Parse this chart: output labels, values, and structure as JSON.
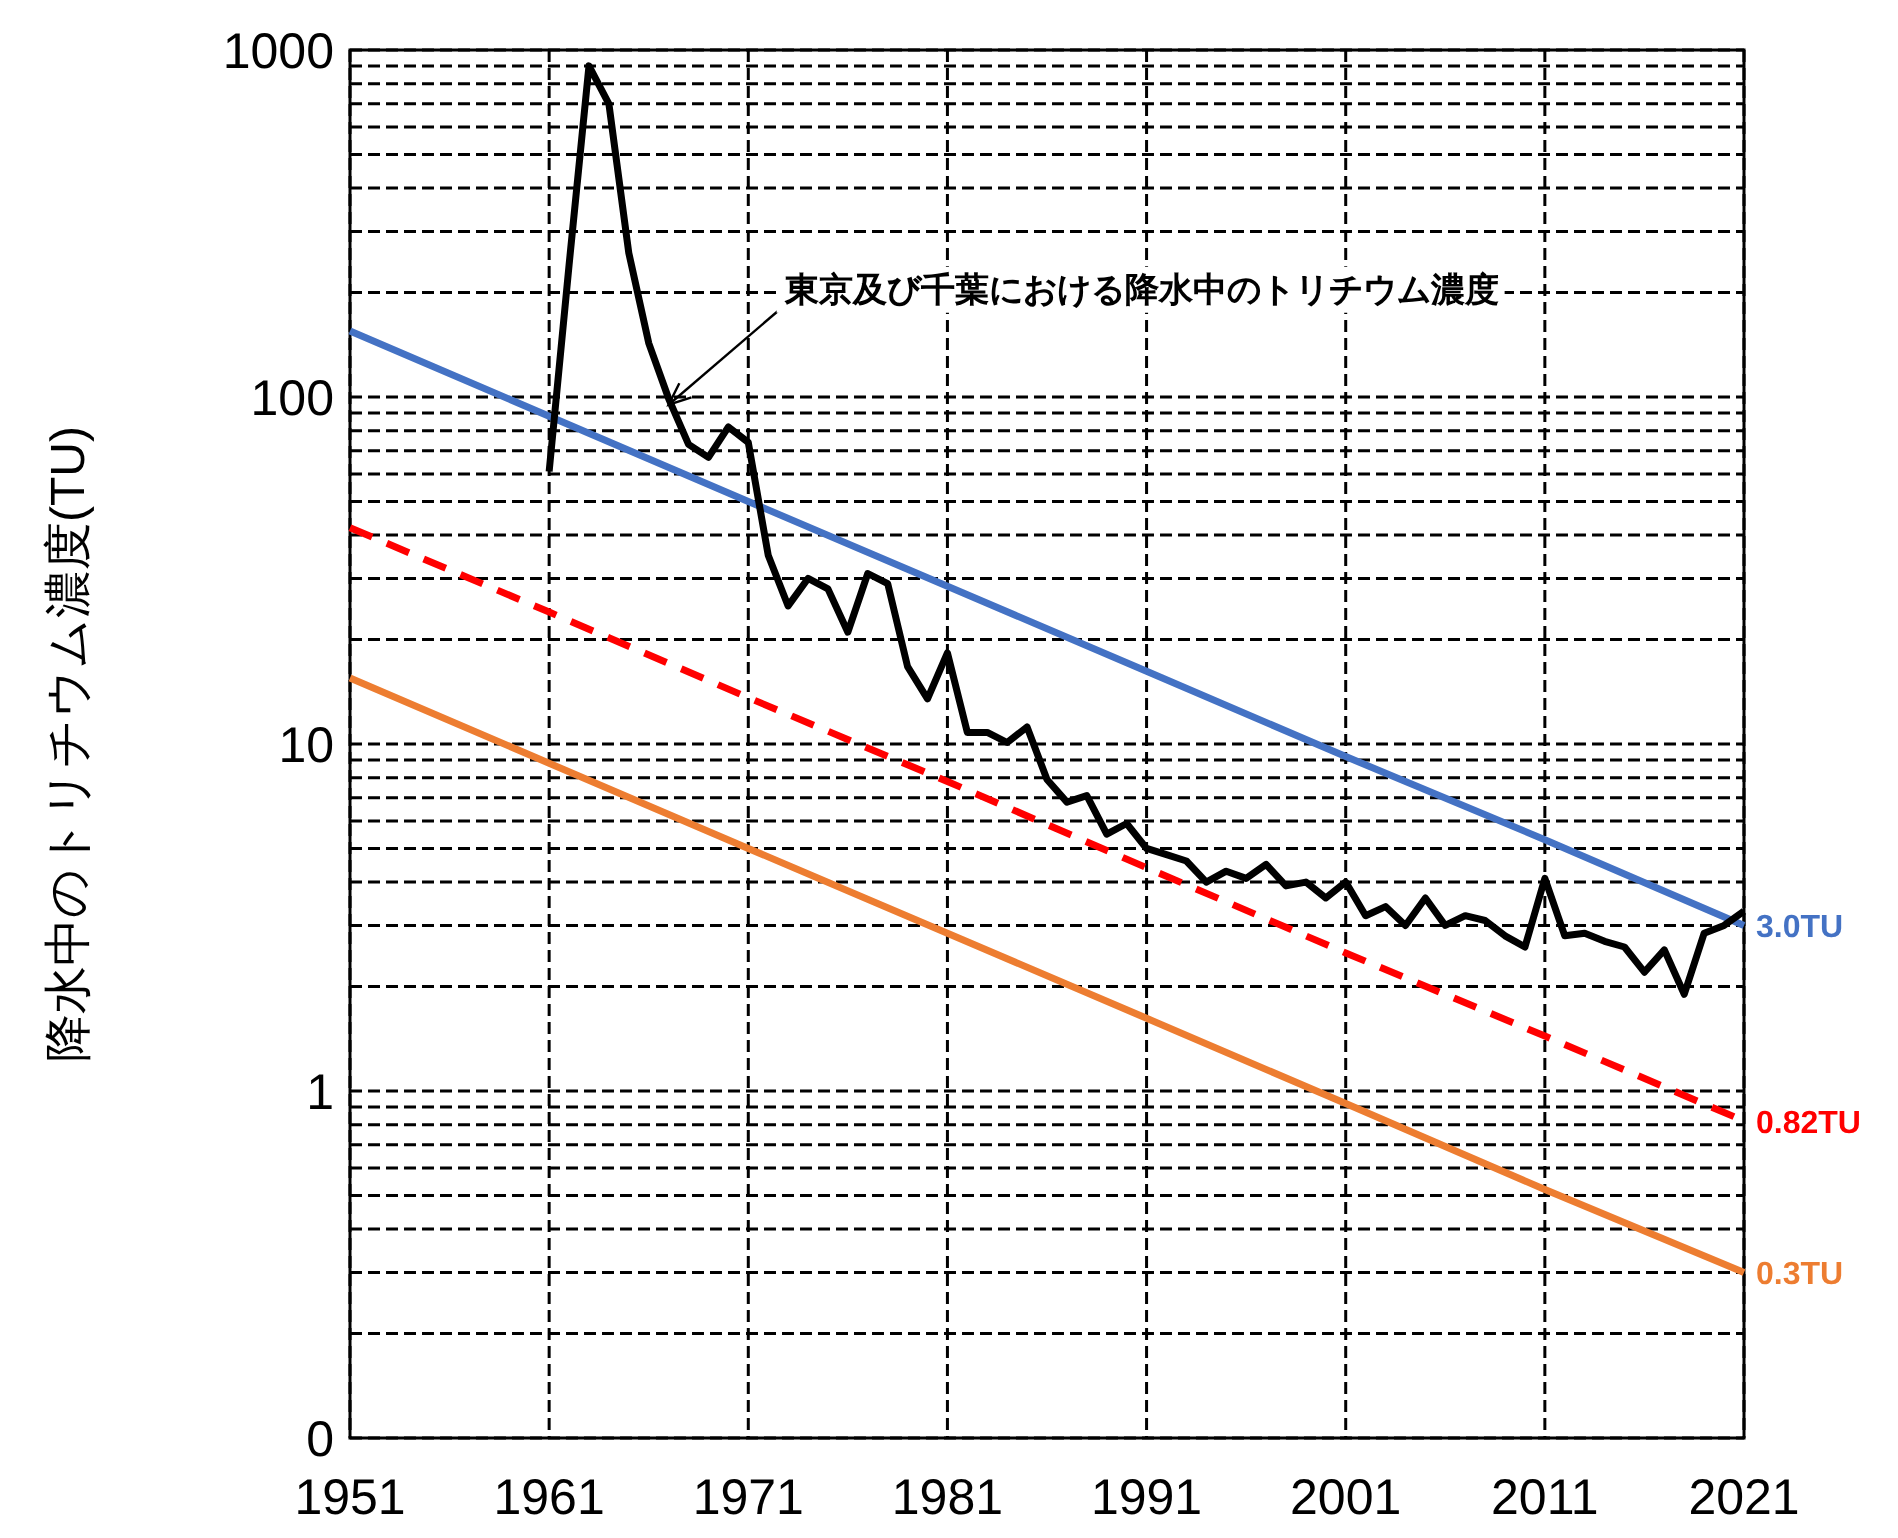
{
  "chart_data": {
    "type": "line",
    "ylabel": "降水中のトリチウム濃度(TU)",
    "log": "y",
    "grid": true,
    "xlim": [
      1951,
      2021
    ],
    "xticks": [
      1951,
      1961,
      1971,
      1981,
      1991,
      2001,
      2011,
      2021
    ],
    "ylim": [
      0.1,
      1000
    ],
    "yticks": [
      {
        "value": 0.1,
        "label": "0"
      },
      {
        "value": 0.2,
        "label": null
      },
      {
        "value": 0.3,
        "label": null
      },
      {
        "value": 0.4,
        "label": null
      },
      {
        "value": 0.5,
        "label": null
      },
      {
        "value": 0.6,
        "label": null
      },
      {
        "value": 0.7,
        "label": null
      },
      {
        "value": 0.8,
        "label": null
      },
      {
        "value": 0.9,
        "label": null
      },
      1,
      {
        "value": 2,
        "label": null
      },
      {
        "value": 3,
        "label": null
      },
      {
        "value": 4,
        "label": null
      },
      {
        "value": 5,
        "label": null
      },
      {
        "value": 6,
        "label": null
      },
      {
        "value": 7,
        "label": null
      },
      {
        "value": 8,
        "label": null
      },
      {
        "value": 9,
        "label": null
      },
      10,
      {
        "value": 20,
        "label": null
      },
      {
        "value": 30,
        "label": null
      },
      {
        "value": 40,
        "label": null
      },
      {
        "value": 50,
        "label": null
      },
      {
        "value": 60,
        "label": null
      },
      {
        "value": 70,
        "label": null
      },
      {
        "value": 80,
        "label": null
      },
      {
        "value": 90,
        "label": null
      },
      100,
      {
        "value": 200,
        "label": null
      },
      {
        "value": 300,
        "label": null
      },
      {
        "value": 400,
        "label": null
      },
      {
        "value": 500,
        "label": null
      },
      {
        "value": 600,
        "label": null
      },
      {
        "value": 700,
        "label": null
      },
      {
        "value": 800,
        "label": null
      },
      {
        "value": 900,
        "label": null
      },
      1000
    ],
    "annotations": [
      {
        "text": "東京及び千葉における降水中のトリチウム濃度",
        "x": 1967,
        "y": 95
      }
    ],
    "series": [
      {
        "name": "3.0TU",
        "color": "#4472c4",
        "line_style": "solid",
        "x": [
          1951,
          1961,
          1971,
          1981,
          1991,
          2001,
          2011,
          2021
        ],
        "values": [
          155,
          88,
          50,
          28.5,
          16.2,
          9.2,
          5.3,
          3.0
        ]
      },
      {
        "name": "0.82TU",
        "color": "#ff0000",
        "line_style": "dashed",
        "x": [
          1951,
          1961,
          1971,
          1981,
          1991,
          2001,
          2011,
          2021
        ],
        "values": [
          42,
          24,
          13.6,
          7.8,
          4.4,
          2.5,
          1.44,
          0.82
        ]
      },
      {
        "name": "0.3TU",
        "color": "#ed7d31",
        "line_style": "solid",
        "x": [
          1951,
          1961,
          1971,
          1981,
          1991,
          2001,
          2011,
          2021
        ],
        "values": [
          15.5,
          8.8,
          5.0,
          2.85,
          1.62,
          0.92,
          0.52,
          0.3
        ]
      },
      {
        "color": "#000000",
        "line_style": "solid",
        "x": [
          1961,
          1962,
          1963,
          1964,
          1965,
          1966,
          1967,
          1968,
          1969,
          1970,
          1971,
          1972,
          1973,
          1974,
          1975,
          1976,
          1977,
          1978,
          1979,
          1980,
          1981,
          1982,
          1983,
          1984,
          1985,
          1986,
          1987,
          1988,
          1989,
          1990,
          1991,
          1992,
          1993,
          1994,
          1995,
          1996,
          1997,
          1998,
          1999,
          2000,
          2001,
          2002,
          2003,
          2004,
          2005,
          2006,
          2007,
          2008,
          2009,
          2010,
          2011,
          2012,
          2013,
          2014,
          2015,
          2016,
          2017,
          2018,
          2019,
          2020,
          2021
        ],
        "values": [
          61,
          240,
          900,
          700,
          260,
          143,
          99,
          73,
          67,
          82,
          74,
          35,
          25,
          30,
          28,
          21,
          31,
          29,
          16.7,
          13.5,
          18.3,
          10.8,
          10.8,
          10.1,
          11.2,
          7.9,
          6.8,
          7.1,
          5.5,
          5.9,
          5.0,
          4.8,
          4.6,
          4.0,
          4.3,
          4.1,
          4.5,
          3.9,
          4.0,
          3.6,
          4.0,
          3.2,
          3.4,
          3.0,
          3.6,
          3.0,
          3.2,
          3.1,
          2.8,
          2.6,
          4.1,
          2.8,
          2.85,
          2.7,
          2.6,
          2.2,
          2.55,
          1.9,
          2.85,
          3.0,
          3.3
        ]
      }
    ]
  }
}
